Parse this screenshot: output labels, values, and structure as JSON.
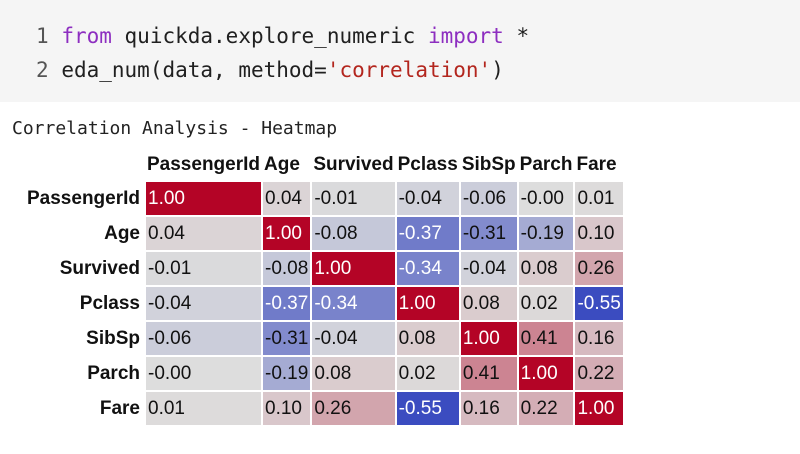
{
  "code": {
    "lines": [
      {
        "num": "1",
        "kw_from": "from",
        "module": " quickda.explore_numeric ",
        "kw_import": "import",
        "rest": " *"
      },
      {
        "num": "2",
        "pre": "eda_num(data, method=",
        "str": "'correlation'",
        "post": ")"
      }
    ]
  },
  "output_title": "Correlation Analysis - Heatmap",
  "chart_data": {
    "type": "heatmap",
    "title": "Correlation Analysis - Heatmap",
    "columns": [
      "PassengerId",
      "Age",
      "Survived",
      "Pclass",
      "SibSp",
      "Parch",
      "Fare"
    ],
    "rows": [
      "PassengerId",
      "Age",
      "Survived",
      "Pclass",
      "SibSp",
      "Parch",
      "Fare"
    ],
    "cells": [
      [
        "1.00",
        "0.04",
        "-0.01",
        "-0.04",
        "-0.06",
        "-0.00",
        "0.01"
      ],
      [
        "0.04",
        "1.00",
        "-0.08",
        "-0.37",
        "-0.31",
        "-0.19",
        "0.10"
      ],
      [
        "-0.01",
        "-0.08",
        "1.00",
        "-0.34",
        "-0.04",
        "0.08",
        "0.26"
      ],
      [
        "-0.04",
        "-0.37",
        "-0.34",
        "1.00",
        "0.08",
        "0.02",
        "-0.55"
      ],
      [
        "-0.06",
        "-0.31",
        "-0.04",
        "0.08",
        "1.00",
        "0.41",
        "0.16"
      ],
      [
        "-0.00",
        "-0.19",
        "0.08",
        "0.02",
        "0.41",
        "1.00",
        "0.22"
      ],
      [
        "0.01",
        "0.10",
        "0.26",
        "-0.55",
        "0.16",
        "0.22",
        "1.00"
      ]
    ],
    "colormap": "coolwarm",
    "vmin": -0.55,
    "vmax": 1.0
  }
}
